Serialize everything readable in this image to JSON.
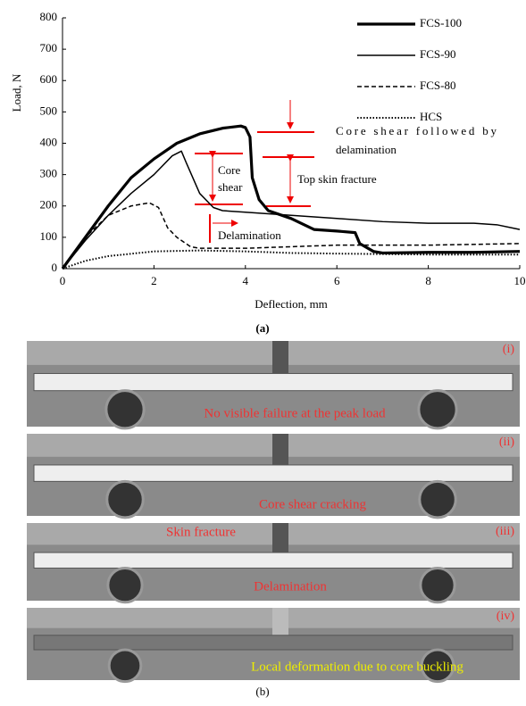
{
  "chart_data": {
    "type": "line",
    "xlabel": "Deflection, mm",
    "ylabel": "Load, N",
    "xlim": [
      0,
      10
    ],
    "xticks": [
      0,
      2,
      4,
      6,
      8,
      10
    ],
    "ylim": [
      0,
      800
    ],
    "yticks": [
      0,
      100,
      200,
      300,
      400,
      500,
      600,
      700,
      800
    ],
    "legend": "upper right",
    "series": [
      {
        "name": "FCS-100",
        "color": "#000000",
        "style": "thick",
        "x": [
          0,
          0.5,
          1,
          1.5,
          2,
          2.5,
          3,
          3.5,
          3.9,
          4.0,
          4.1,
          4.15,
          4.3,
          4.5,
          5,
          5.5,
          6,
          6.4,
          6.5,
          6.8,
          7,
          8,
          9,
          10
        ],
        "values": [
          0,
          100,
          200,
          290,
          350,
          400,
          430,
          448,
          455,
          450,
          420,
          290,
          220,
          185,
          160,
          125,
          120,
          115,
          80,
          55,
          50,
          52,
          52,
          55
        ]
      },
      {
        "name": "FCS-90",
        "color": "#000000",
        "style": "solid",
        "x": [
          0,
          0.5,
          1,
          1.5,
          2,
          2.4,
          2.6,
          2.7,
          3,
          3.3,
          3.5,
          4,
          5,
          6,
          7,
          8,
          9,
          9.5,
          10
        ],
        "values": [
          0,
          90,
          170,
          240,
          300,
          360,
          375,
          340,
          240,
          195,
          185,
          180,
          170,
          160,
          150,
          145,
          145,
          140,
          125
        ]
      },
      {
        "name": "FCS-80",
        "color": "#000000",
        "style": "dashed",
        "x": [
          0,
          0.5,
          1,
          1.5,
          1.9,
          2.1,
          2.3,
          2.5,
          2.8,
          3,
          4,
          5,
          6,
          8,
          10
        ],
        "values": [
          0,
          100,
          170,
          200,
          210,
          195,
          130,
          100,
          70,
          65,
          65,
          70,
          75,
          75,
          80
        ]
      },
      {
        "name": "HCS",
        "color": "#000000",
        "style": "dotted",
        "x": [
          0,
          0.5,
          1,
          2,
          3,
          4,
          5,
          6,
          8,
          10
        ],
        "values": [
          0,
          25,
          40,
          55,
          58,
          55,
          50,
          48,
          45,
          45
        ]
      }
    ],
    "annotations": [
      "Core shear followed by",
      "delamination",
      "Core",
      "shear",
      "Top skin fracture",
      "Delamination"
    ]
  },
  "figure": {
    "label_a": "(a)",
    "label_b": "(b)",
    "panels": [
      {
        "tag": "(i)",
        "notes": [
          "No visible failure at the peak load"
        ]
      },
      {
        "tag": "(ii)",
        "notes": [
          "Core shear cracking"
        ]
      },
      {
        "tag": "(iii)",
        "notes": [
          "Skin fracture",
          "Delamination"
        ]
      },
      {
        "tag": "(iv)",
        "notes": [
          "Local deformation due to core buckling"
        ]
      }
    ]
  }
}
